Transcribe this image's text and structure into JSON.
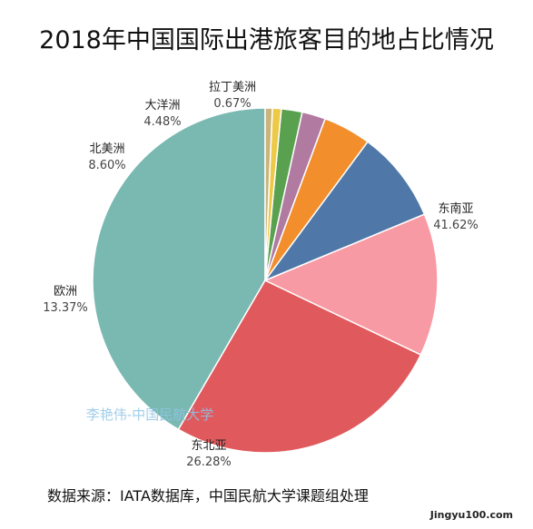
{
  "chart_data": {
    "type": "pie",
    "title": "2018年中国国际出港旅客目的地占比情况",
    "slices": [
      {
        "label": "东南亚",
        "value": 41.62,
        "pct_text": "41.62%",
        "color": "#7ab8b2"
      },
      {
        "label": "东北亚",
        "value": 26.28,
        "pct_text": "26.28%",
        "color": "#e05a5d"
      },
      {
        "label": "欧洲",
        "value": 13.37,
        "pct_text": "13.37%",
        "color": "#f89aa4"
      },
      {
        "label": "北美洲",
        "value": 8.6,
        "pct_text": "8.60%",
        "color": "#4f78a8"
      },
      {
        "label": "大洋洲",
        "value": 4.48,
        "pct_text": "4.48%",
        "color": "#f28e2c"
      },
      {
        "label": "",
        "value": 2.2,
        "pct_text": "",
        "color": "#b07aa1"
      },
      {
        "label": "",
        "value": 1.95,
        "pct_text": "",
        "color": "#59a14f"
      },
      {
        "label": "",
        "value": 0.83,
        "pct_text": "",
        "color": "#edc948"
      },
      {
        "label": "拉丁美洲",
        "value": 0.67,
        "pct_text": "0.67%",
        "color": "#c9b47a"
      }
    ]
  },
  "watermark": "李艳伟-中国民航大学",
  "source_note": "数据来源：IATA数据库，中国民航大学课题组处理",
  "site_mark": "Jingyu100.com"
}
